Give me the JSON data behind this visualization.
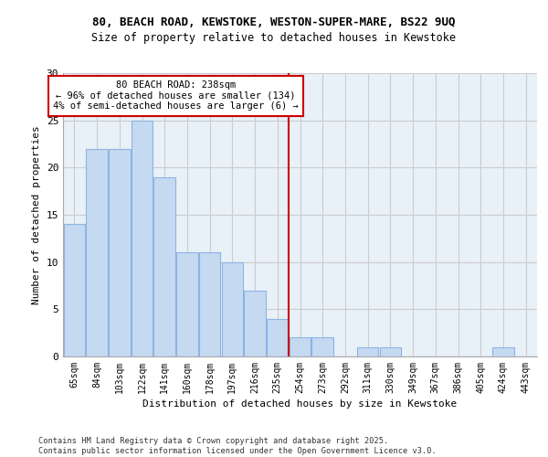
{
  "title_line1": "80, BEACH ROAD, KEWSTOKE, WESTON-SUPER-MARE, BS22 9UQ",
  "title_line2": "Size of property relative to detached houses in Kewstoke",
  "xlabel": "Distribution of detached houses by size in Kewstoke",
  "ylabel": "Number of detached properties",
  "categories": [
    "65sqm",
    "84sqm",
    "103sqm",
    "122sqm",
    "141sqm",
    "160sqm",
    "178sqm",
    "197sqm",
    "216sqm",
    "235sqm",
    "254sqm",
    "273sqm",
    "292sqm",
    "311sqm",
    "330sqm",
    "349sqm",
    "367sqm",
    "386sqm",
    "405sqm",
    "424sqm",
    "443sqm"
  ],
  "values": [
    14,
    22,
    22,
    25,
    19,
    11,
    11,
    10,
    7,
    4,
    2,
    2,
    0,
    1,
    1,
    0,
    0,
    0,
    0,
    1,
    0
  ],
  "bar_color": "#c5d9f1",
  "bar_edge_color": "#8db4e2",
  "marker_color": "#cc0000",
  "marker_label": "80 BEACH ROAD: 238sqm",
  "marker_line1": "← 96% of detached houses are smaller (134)",
  "marker_line2": "4% of semi-detached houses are larger (6) →",
  "ylim": [
    0,
    30
  ],
  "yticks": [
    0,
    5,
    10,
    15,
    20,
    25,
    30
  ],
  "grid_color": "#cccccc",
  "bg_color": "#e8f0f8",
  "footer": "Contains HM Land Registry data © Crown copyright and database right 2025.\nContains public sector information licensed under the Open Government Licence v3.0."
}
